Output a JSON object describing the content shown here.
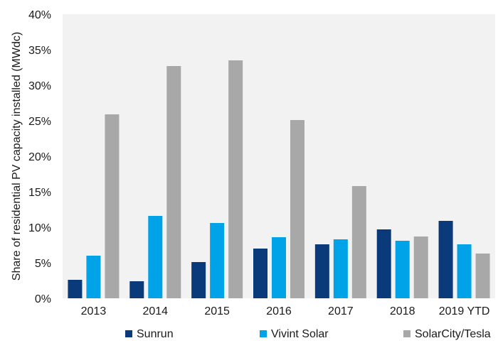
{
  "chart_data": {
    "type": "bar",
    "title": "",
    "xlabel": "",
    "ylabel": "Share of residential PV capacity installed (MWdc)",
    "ylim": [
      0,
      40
    ],
    "yticks": [
      0,
      5,
      10,
      15,
      20,
      25,
      30,
      35,
      40
    ],
    "ytick_labels": [
      "0%",
      "5%",
      "10%",
      "15%",
      "20%",
      "25%",
      "30%",
      "35%",
      "40%"
    ],
    "categories": [
      "2013",
      "2014",
      "2015",
      "2016",
      "2017",
      "2018",
      "2019 YTD"
    ],
    "series": [
      {
        "name": "Sunrun",
        "color": "#0a3a7a",
        "values": [
          2.6,
          2.4,
          5.1,
          7.0,
          7.6,
          9.7,
          10.9
        ]
      },
      {
        "name": "Vivint Solar",
        "color": "#00a3e8",
        "values": [
          6.0,
          11.6,
          10.6,
          8.6,
          8.3,
          8.1,
          7.6
        ]
      },
      {
        "name": "SolarCity/Tesla",
        "color": "#a8a8a8",
        "values": [
          25.9,
          32.7,
          33.5,
          25.1,
          15.8,
          8.7,
          6.3
        ]
      }
    ],
    "grid": false,
    "plot_background": "#f2f2f2",
    "legend_position": "bottom"
  }
}
